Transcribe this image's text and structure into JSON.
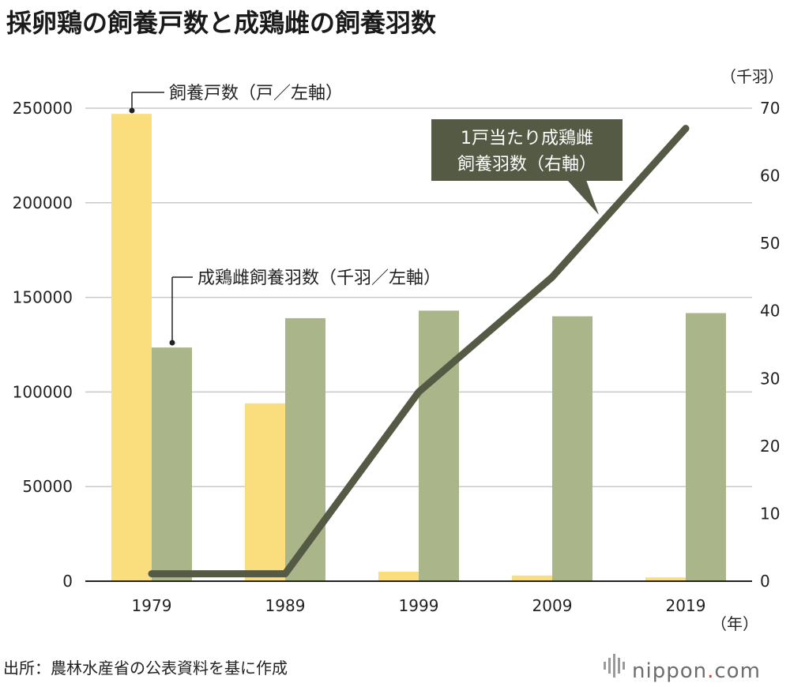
{
  "chart_data": {
    "type": "bar",
    "title": "採卵鶏の飼養戸数と成鶏雌の飼養羽数",
    "categories": [
      "1979",
      "1989",
      "1999",
      "2009",
      "2019"
    ],
    "x_unit": "（年）",
    "y_left": {
      "ylim": [
        0,
        250000
      ],
      "ticks": [
        0,
        50000,
        100000,
        150000,
        200000,
        250000
      ]
    },
    "y_right": {
      "ylim": [
        0,
        70
      ],
      "ticks": [
        0,
        10,
        20,
        30,
        40,
        50,
        60,
        70
      ],
      "unit": "（千羽）"
    },
    "series": [
      {
        "name": "飼養戸数（戸／左軸）",
        "type": "bar",
        "axis": "left",
        "color": "#fade7e",
        "values": [
          247000,
          94000,
          5000,
          3000,
          2000
        ]
      },
      {
        "name": "成鶏雌飼養羽数（千羽／左軸）",
        "type": "bar",
        "axis": "left",
        "color": "#abb58a",
        "values": [
          123500,
          139000,
          143000,
          140000,
          141700
        ]
      },
      {
        "name": "1戸当たり成鶏雌飼養羽数（右軸）",
        "type": "line",
        "axis": "right",
        "color": "#555a44",
        "values": [
          1.1,
          1.1,
          28,
          45,
          67
        ]
      }
    ],
    "annotations": {
      "households": "飼養戸数（戸／左軸）",
      "hens": "成鶏雌飼養羽数（千羽／左軸）",
      "per_household_line1": "1戸当たり成鶏雌",
      "per_household_line2": "飼養羽数（右軸）"
    }
  },
  "source": "出所：農林水産省の公表資料を基に作成",
  "brand": {
    "name": "nippon",
    "dot": ".",
    "suffix": "com",
    "dot_color": "#e0342c"
  },
  "colors": {
    "grid": "#c9c9c9",
    "axis": "#222222",
    "callout_bg": "#555a44"
  }
}
